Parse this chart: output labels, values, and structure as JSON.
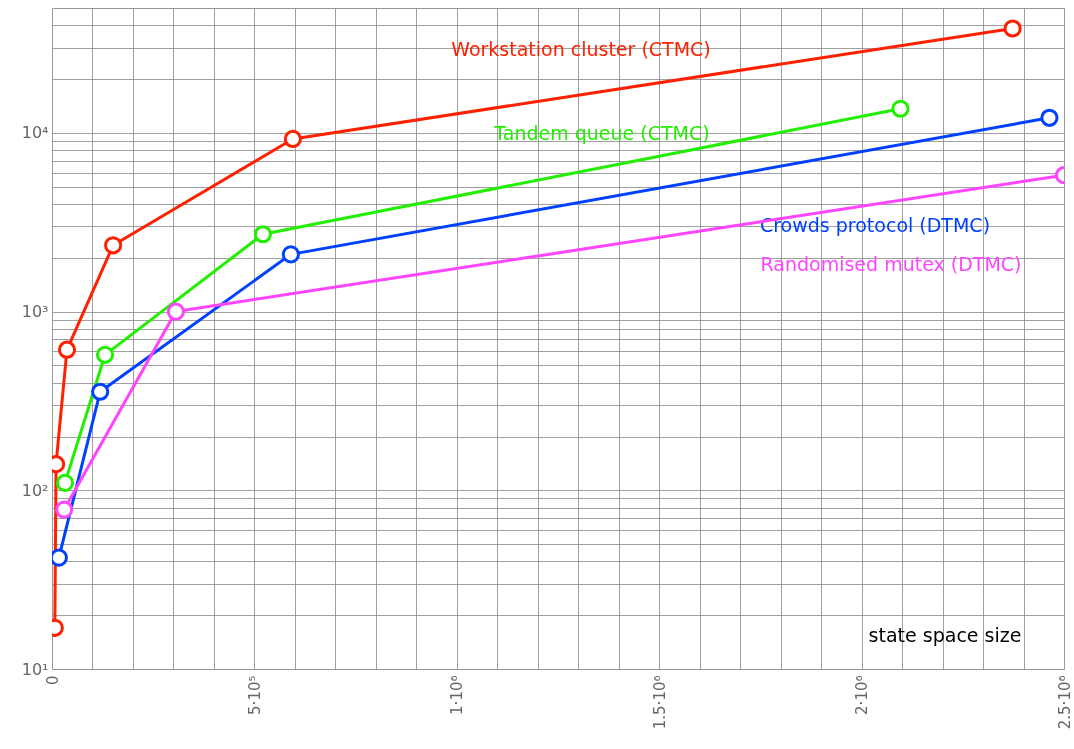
{
  "chart_data": {
    "type": "line",
    "xlabel": "state space size",
    "series": [
      {
        "name": "Workstation cluster (CTMC)",
        "color": "#ff2000",
        "x": [
          7000,
          10000,
          37000,
          151000,
          595000,
          2373000
        ],
        "values": [
          17,
          140,
          612,
          2350,
          9250,
          38400
        ]
      },
      {
        "name": "Tandem queue (CTMC)",
        "color": "#22ee00",
        "x": [
          32000,
          131000,
          521000,
          2096000
        ],
        "values": [
          110,
          573,
          2710,
          13650
        ]
      },
      {
        "name": "Crowds protocol (DTMC)",
        "color": "#0040ff",
        "x": [
          17000,
          119000,
          590000,
          2464000
        ],
        "values": [
          42,
          356,
          2090,
          12150
        ]
      },
      {
        "name": "Randomised mutex (DTMC)",
        "color": "#ff44ff",
        "x": [
          30000,
          306000,
          2500000
        ],
        "values": [
          78,
          1000,
          5800
        ]
      }
    ],
    "log": "y",
    "xlim": [
      0,
      2500000
    ],
    "ylim": [
      10,
      50000
    ],
    "xticks": [
      0,
      {
        "value": 100000,
        "label": null
      },
      {
        "value": 200000,
        "label": null
      },
      {
        "value": 300000,
        "label": null
      },
      {
        "value": 400000,
        "label": null
      },
      {
        "value": 500000,
        "label": "5·10⁵"
      },
      {
        "value": 600000,
        "label": null
      },
      {
        "value": 700000,
        "label": null
      },
      {
        "value": 800000,
        "label": null
      },
      {
        "value": 900000,
        "label": null
      },
      {
        "value": 1000000,
        "label": "1·10⁶"
      },
      {
        "value": 1100000,
        "label": null
      },
      {
        "value": 1200000,
        "label": null
      },
      {
        "value": 1300000,
        "label": null
      },
      {
        "value": 1400000,
        "label": null
      },
      {
        "value": 1500000,
        "label": "1.5·10⁶"
      },
      {
        "value": 1600000,
        "label": null
      },
      {
        "value": 1700000,
        "label": null
      },
      {
        "value": 1800000,
        "label": null
      },
      {
        "value": 1900000,
        "label": null
      },
      {
        "value": 2000000,
        "label": "2·10⁶"
      },
      {
        "value": 2100000,
        "label": null
      },
      {
        "value": 2200000,
        "label": null
      },
      {
        "value": 2300000,
        "label": null
      },
      {
        "value": 2400000,
        "label": null
      },
      {
        "value": 2500000,
        "label": "2.5·10⁶"
      }
    ],
    "yticks": [
      {
        "value": 10,
        "label": "10¹"
      },
      {
        "value": 20,
        "label": null
      },
      {
        "value": 30,
        "label": null
      },
      {
        "value": 40,
        "label": null
      },
      {
        "value": 50,
        "label": null
      },
      {
        "value": 60,
        "label": null
      },
      {
        "value": 70,
        "label": null
      },
      {
        "value": 80,
        "label": null
      },
      {
        "value": 90,
        "label": null
      },
      {
        "value": 100,
        "label": "10²"
      },
      {
        "value": 200,
        "label": null
      },
      {
        "value": 300,
        "label": null
      },
      {
        "value": 400,
        "label": null
      },
      {
        "value": 500,
        "label": null
      },
      {
        "value": 600,
        "label": null
      },
      {
        "value": 700,
        "label": null
      },
      {
        "value": 800,
        "label": null
      },
      {
        "value": 900,
        "label": null
      },
      {
        "value": 1000,
        "label": "10³"
      },
      {
        "value": 2000,
        "label": null
      },
      {
        "value": 3000,
        "label": null
      },
      {
        "value": 4000,
        "label": null
      },
      {
        "value": 5000,
        "label": null
      },
      {
        "value": 6000,
        "label": null
      },
      {
        "value": 7000,
        "label": null
      },
      {
        "value": 8000,
        "label": null
      },
      {
        "value": 9000,
        "label": null
      },
      {
        "value": 10000,
        "label": "10⁴"
      },
      {
        "value": 20000,
        "label": null
      },
      {
        "value": 30000,
        "label": null
      },
      {
        "value": 40000,
        "label": null
      },
      {
        "value": 50000,
        "label": null
      }
    ],
    "grid": true,
    "legend": false,
    "marker": "circle",
    "line_style": "solid"
  }
}
